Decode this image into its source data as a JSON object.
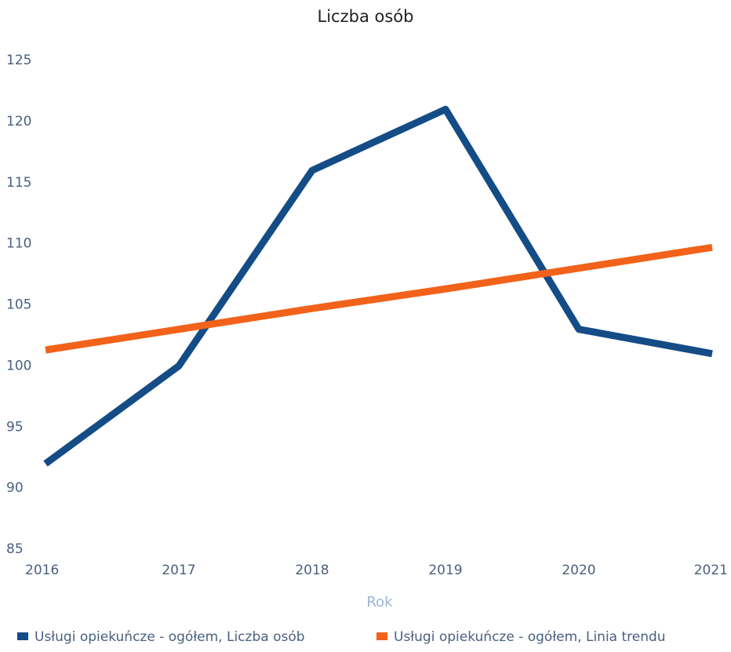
{
  "chart_data": {
    "type": "line",
    "title": "Liczba osób",
    "x_label": "Rok",
    "categories": [
      "2016",
      "2017",
      "2018",
      "2019",
      "2020",
      "2021"
    ],
    "series": [
      {
        "name": "Usługi opiekuńcze - ogółem, Liczba osób",
        "color": "#144c86",
        "values": [
          92,
          100,
          116,
          121,
          103,
          101
        ]
      },
      {
        "name": "Usługi opiekuńcze - ogółem, Linia trendu",
        "color": "#f2621a",
        "values": [
          101.3,
          103.0,
          104.7,
          106.3,
          108.0,
          109.7
        ]
      }
    ],
    "ylim": [
      85,
      125
    ],
    "yticks": [
      85,
      90,
      95,
      100,
      105,
      110,
      115,
      120,
      125
    ],
    "grid": false
  }
}
